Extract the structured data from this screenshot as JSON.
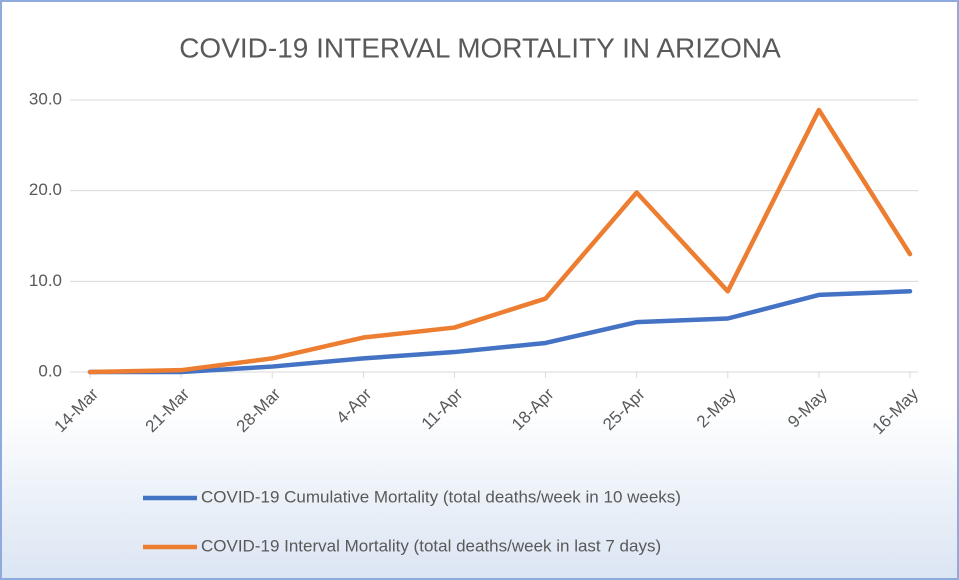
{
  "chart_data": {
    "type": "line",
    "title": "COVID-19 INTERVAL MORTALITY IN ARIZONA",
    "categories": [
      "14-Mar",
      "21-Mar",
      "28-Mar",
      "4-Apr",
      "11-Apr",
      "18-Apr",
      "25-Apr",
      "2-May",
      "9-May",
      "16-May"
    ],
    "series": [
      {
        "name": "COVID-19 Cumulative Mortality (total deaths/week in 10 weeks)",
        "color": "#4472c4",
        "values": [
          0,
          0,
          0.6,
          1.5,
          2.2,
          3.2,
          5.5,
          5.9,
          8.5,
          8.9
        ]
      },
      {
        "name": "COVID-19 Interval Mortality (total deaths/week in last 7 days)",
        "color": "#ed7d31",
        "values": [
          0,
          0.2,
          1.5,
          3.8,
          4.9,
          8.1,
          19.8,
          8.9,
          28.9,
          13.0
        ]
      }
    ],
    "ylim": [
      0,
      30
    ],
    "yticks": [
      {
        "value": 0,
        "label": "0.0"
      },
      {
        "value": 10,
        "label": "10.0"
      },
      {
        "value": 20,
        "label": "20.0"
      },
      {
        "value": 30,
        "label": "30.0"
      }
    ],
    "grid": true
  }
}
